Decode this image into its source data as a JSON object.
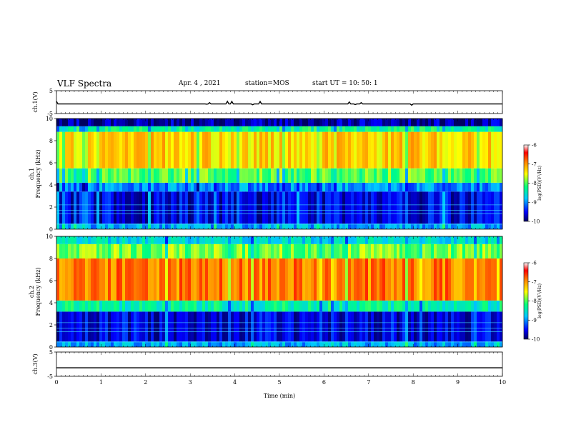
{
  "header": {
    "title": "VLF Spectra",
    "date": "Apr. 4  , 2021",
    "station": "station=MOS",
    "start": "start  UT =   10: 50: 1"
  },
  "chart_data": [
    {
      "type": "line",
      "name": "ch1-waveform",
      "ylabel": "ch.1(V)",
      "ylim": [
        -5,
        5
      ],
      "yticks": [
        "5",
        "-5"
      ],
      "xlim": [
        0,
        10
      ],
      "values": "flat trace near 0 V with sparse spikes"
    },
    {
      "type": "heatmap",
      "name": "ch1-spectrogram",
      "ylabel": "ch.1\nFrequency (kHz)",
      "ylabel_line1": "ch.1",
      "ylabel_line2": "Frequency (kHz)",
      "ylim": [
        0,
        10
      ],
      "yticks": [
        "0",
        "2",
        "4",
        "6",
        "8",
        "10"
      ],
      "xlim": [
        0,
        10
      ],
      "colorbar": {
        "label": "log(PSD)(V²/Hz)",
        "range": [
          -10,
          -6
        ],
        "ticks": [
          "-6",
          "-7",
          "-8",
          "-9",
          "-10"
        ]
      },
      "bands": [
        {
          "from": 0,
          "to": 0.5,
          "level": -8.9
        },
        {
          "from": 0.5,
          "to": 3.4,
          "level": -9.6
        },
        {
          "from": 3.4,
          "to": 4.2,
          "level": -9.0
        },
        {
          "from": 4.2,
          "to": 5.5,
          "level": -8.0
        },
        {
          "from": 5.5,
          "to": 8.8,
          "level": -7.3
        },
        {
          "from": 8.8,
          "to": 9.3,
          "level": -8.3
        },
        {
          "from": 9.3,
          "to": 10,
          "level": -9.8
        }
      ]
    },
    {
      "type": "heatmap",
      "name": "ch2-spectrogram",
      "ylabel": "ch.2\nFrequency (kHz)",
      "ylabel_line1": "ch.2",
      "ylabel_line2": "Frequency (kHz)",
      "ylim": [
        0,
        10
      ],
      "yticks": [
        "0",
        "2",
        "4",
        "6",
        "8",
        "10"
      ],
      "xlim": [
        0,
        10
      ],
      "colorbar": {
        "label": "log(PSD)(V²/Hz)",
        "range": [
          -10,
          -6
        ],
        "ticks": [
          "-6",
          "-7",
          "-8",
          "-9",
          "-10"
        ]
      },
      "bands": [
        {
          "from": 0,
          "to": 0.5,
          "level": -8.9
        },
        {
          "from": 0.5,
          "to": 3.2,
          "level": -9.6
        },
        {
          "from": 3.2,
          "to": 4.2,
          "level": -8.4
        },
        {
          "from": 4.2,
          "to": 8.0,
          "level": -6.9
        },
        {
          "from": 8.0,
          "to": 9.3,
          "level": -7.9
        },
        {
          "from": 9.3,
          "to": 10,
          "level": -8.6
        }
      ]
    },
    {
      "type": "line",
      "name": "ch3-waveform",
      "ylabel": "ch.3(V)",
      "ylim": [
        -5,
        5
      ],
      "yticks": [
        "5",
        "-5"
      ],
      "xlim": [
        0,
        10
      ],
      "values": "flat trace at about -1.5 V"
    }
  ],
  "xaxis": {
    "label": "Time  (min)",
    "ticks": [
      "0",
      "1",
      "2",
      "3",
      "4",
      "5",
      "6",
      "7",
      "8",
      "9",
      "10"
    ],
    "range": [
      0,
      10
    ]
  },
  "colors": {
    "colormap": [
      "#000060",
      "#0000ff",
      "#00c8ff",
      "#00ff80",
      "#ffff00",
      "#ff8000",
      "#ff0000",
      "#ffffff"
    ]
  }
}
